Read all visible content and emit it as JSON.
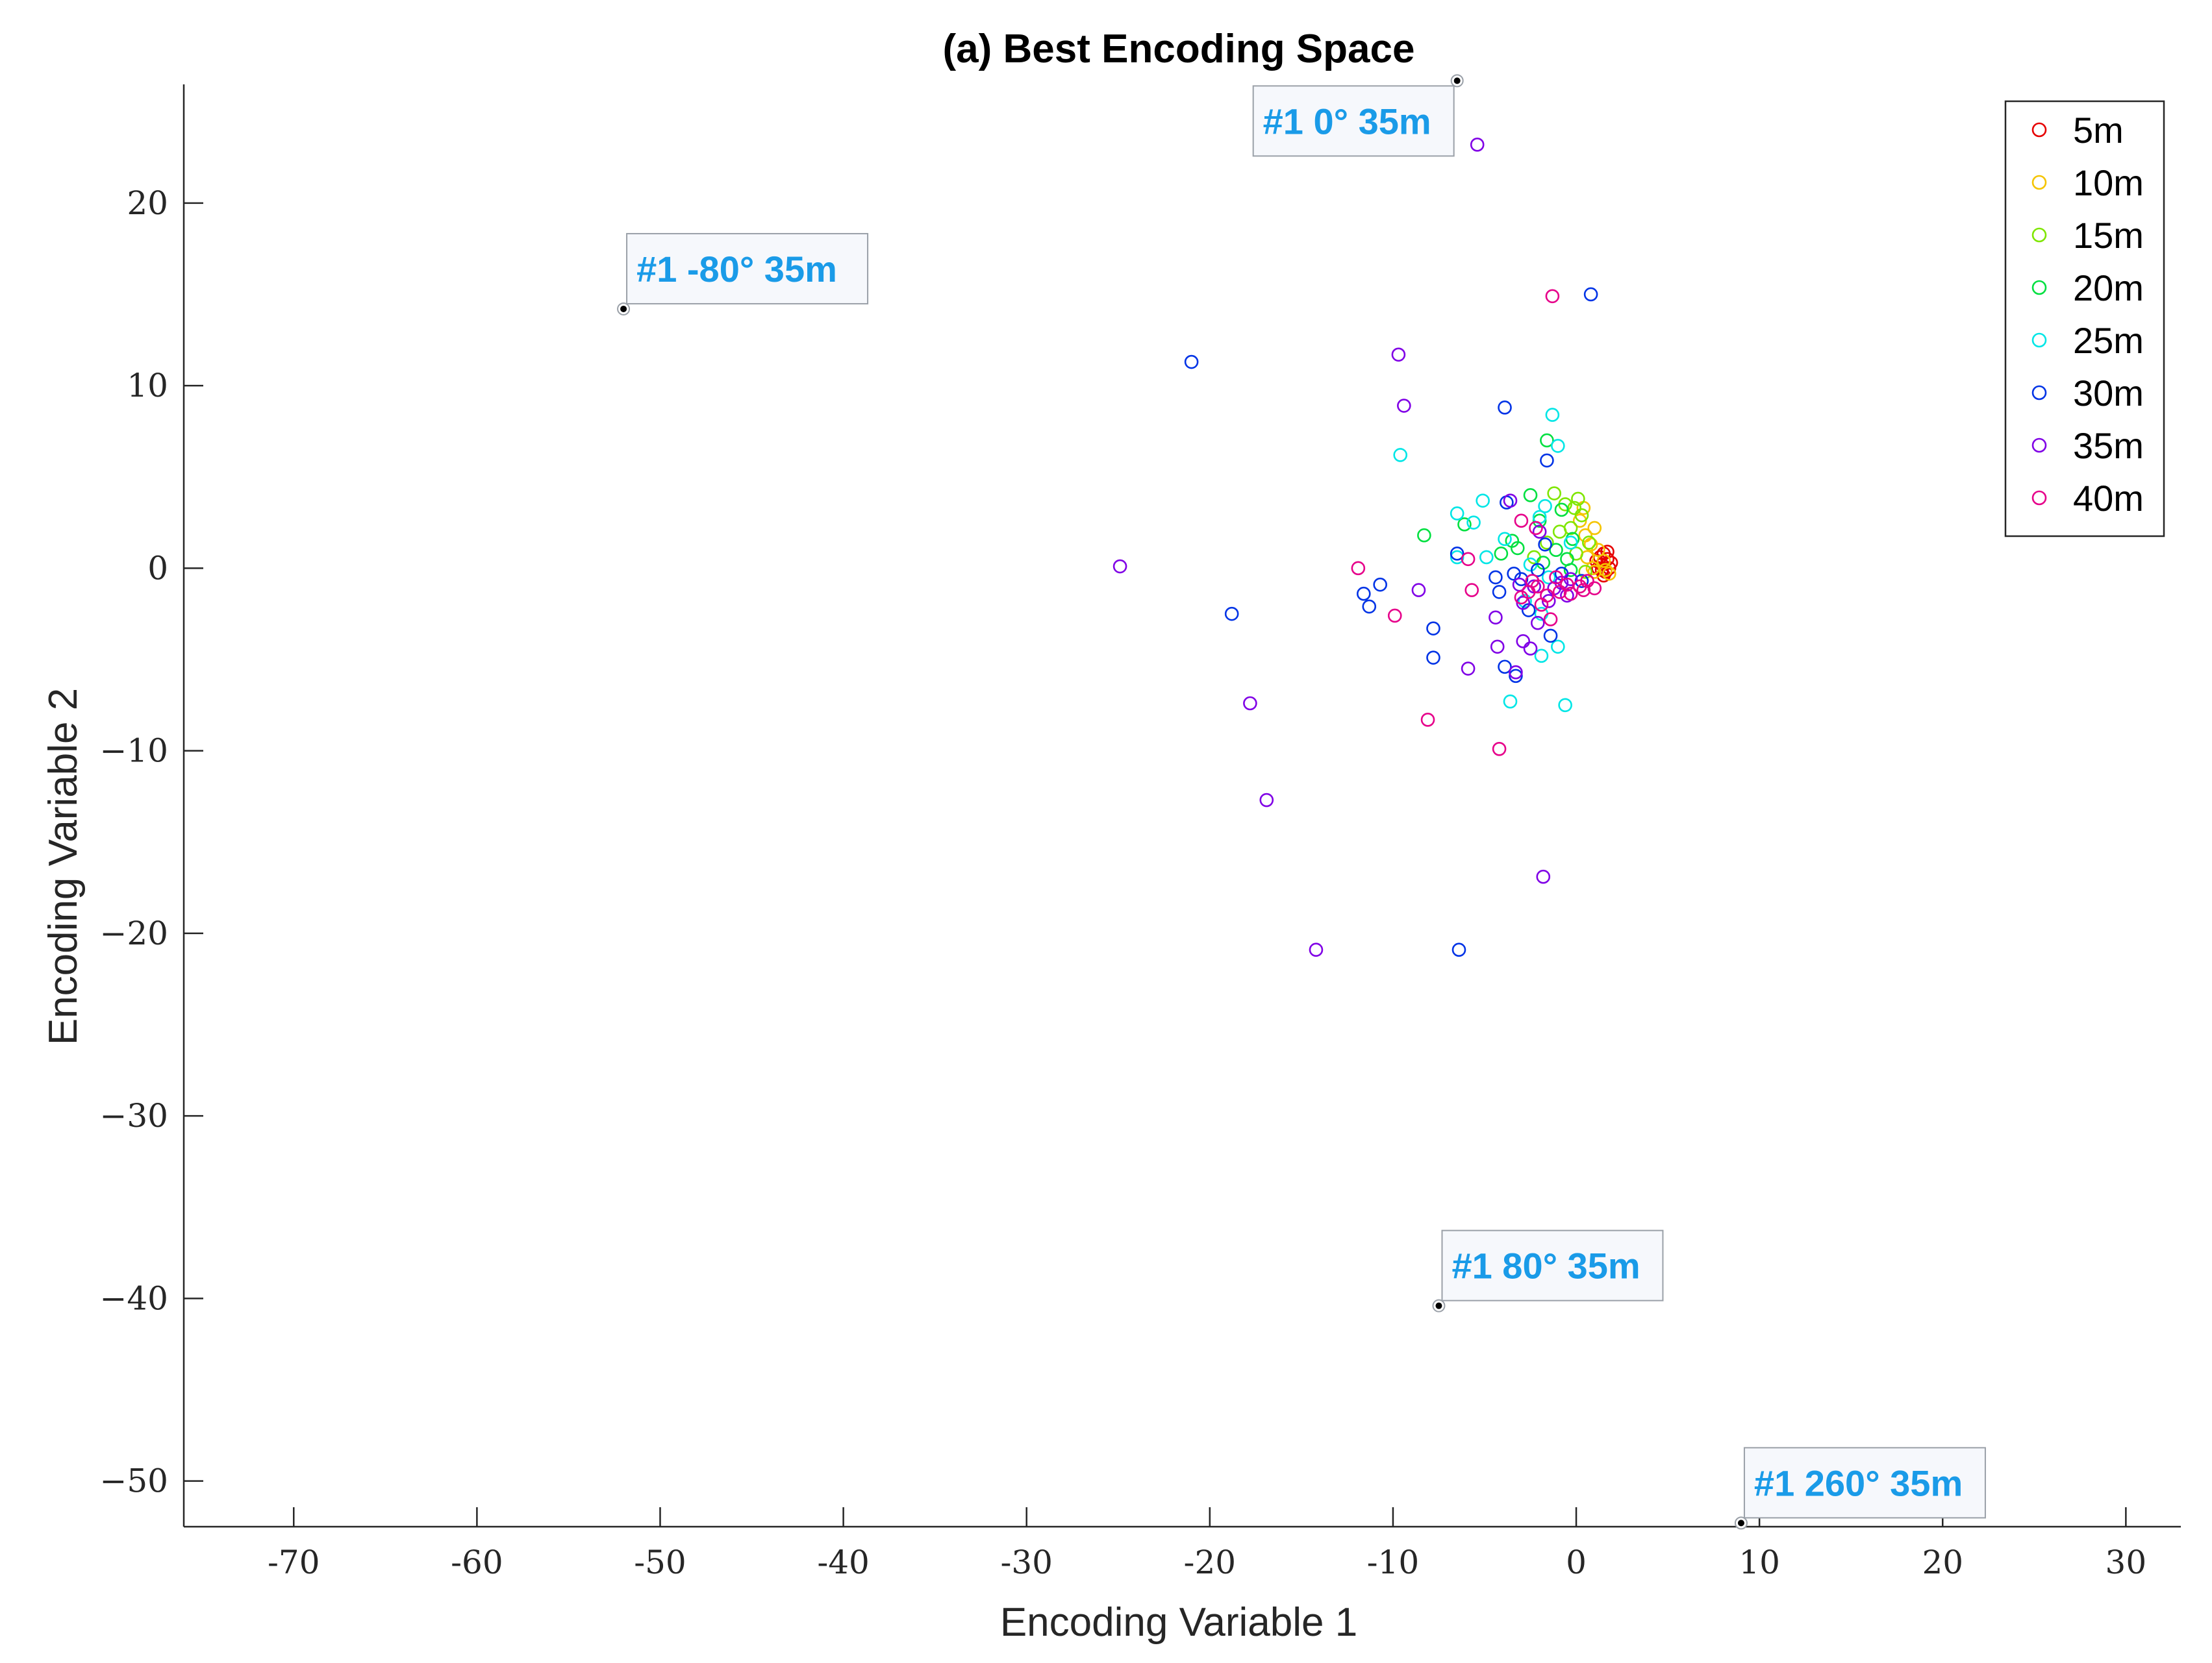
{
  "chart_data": {
    "type": "scatter",
    "title": "(a) Best Encoding Space",
    "xlabel": "Encoding Variable 1",
    "ylabel": "Encoding Variable 2",
    "xlim": [
      -76,
      33
    ],
    "ylim": [
      -52.5,
      26.5
    ],
    "xticks": [
      -70,
      -60,
      -50,
      -40,
      -30,
      -20,
      -10,
      0,
      10,
      20,
      30
    ],
    "yticks": [
      -50,
      -40,
      -30,
      -20,
      -10,
      0,
      10,
      20
    ],
    "xtick_labels": [
      "-70",
      "-60",
      "-50",
      "-40",
      "-30",
      "-20",
      "-10",
      "0",
      "10",
      "20",
      "30"
    ],
    "ytick_labels": [
      "−50",
      "−40",
      "−30",
      "−20",
      "−10",
      "0",
      "10",
      "20"
    ],
    "grid": false,
    "legend_position": "top-right",
    "marker": "open-circle",
    "series": [
      {
        "name": "5m",
        "color": "#e60000",
        "points": [
          [
            1.5,
            0.8
          ],
          [
            1.7,
            0.5
          ],
          [
            1.4,
            0.2
          ],
          [
            1.8,
            0.0
          ],
          [
            1.6,
            -0.2
          ],
          [
            1.3,
            0.6
          ],
          [
            1.9,
            0.3
          ],
          [
            1.2,
            0.0
          ],
          [
            1.5,
            -0.4
          ],
          [
            1.7,
            0.9
          ],
          [
            1.1,
            0.4
          ],
          [
            1.4,
            -0.1
          ]
        ]
      },
      {
        "name": "10m",
        "color": "#f5c400",
        "points": [
          [
            1.0,
            2.2
          ],
          [
            0.8,
            1.3
          ],
          [
            1.5,
            0.4
          ],
          [
            0.5,
            1.8
          ],
          [
            0.9,
            0.0
          ],
          [
            1.8,
            -0.3
          ],
          [
            0.2,
            2.6
          ],
          [
            1.2,
            1.0
          ],
          [
            0.6,
            0.6
          ],
          [
            1.6,
            -0.1
          ],
          [
            0.4,
            3.3
          ],
          [
            1.0,
            -0.2
          ]
        ]
      },
      {
        "name": "15m",
        "color": "#7fe600",
        "points": [
          [
            0.1,
            3.8
          ],
          [
            -0.6,
            3.5
          ],
          [
            0.3,
            2.9
          ],
          [
            -1.2,
            4.1
          ],
          [
            -0.3,
            2.2
          ],
          [
            0.7,
            1.4
          ],
          [
            -1.6,
            1.4
          ],
          [
            0.0,
            0.8
          ],
          [
            -2.3,
            0.6
          ],
          [
            0.5,
            -0.2
          ],
          [
            -0.9,
            2.0
          ],
          [
            -0.1,
            3.3
          ]
        ]
      },
      {
        "name": "20m",
        "color": "#00e040",
        "points": [
          [
            -8.3,
            1.8
          ],
          [
            -6.1,
            2.4
          ],
          [
            -2.5,
            4.0
          ],
          [
            -1.6,
            7.0
          ],
          [
            -3.2,
            1.1
          ],
          [
            -0.8,
            3.2
          ],
          [
            -2.0,
            2.6
          ],
          [
            -0.2,
            1.6
          ],
          [
            -1.1,
            1.0
          ],
          [
            -3.5,
            1.5
          ],
          [
            -0.5,
            0.5
          ],
          [
            -1.8,
            0.3
          ],
          [
            -4.1,
            0.8
          ],
          [
            -0.3,
            -0.1
          ]
        ]
      },
      {
        "name": "25m",
        "color": "#00e6e6",
        "points": [
          [
            -9.6,
            6.2
          ],
          [
            -1.3,
            8.4
          ],
          [
            -1.0,
            6.7
          ],
          [
            -5.1,
            3.7
          ],
          [
            -6.5,
            3.0
          ],
          [
            -1.7,
            3.4
          ],
          [
            -5.6,
            2.5
          ],
          [
            -2.0,
            2.8
          ],
          [
            -3.9,
            1.6
          ],
          [
            -6.5,
            0.6
          ],
          [
            -4.9,
            0.6
          ],
          [
            -2.5,
            0.2
          ],
          [
            -1.5,
            -0.5
          ],
          [
            -1.9,
            -2.5
          ],
          [
            -1.0,
            -4.3
          ],
          [
            -1.9,
            -4.8
          ],
          [
            -3.6,
            -7.3
          ],
          [
            -0.6,
            -7.5
          ],
          [
            -0.3,
            1.4
          ],
          [
            -2.8,
            -1.8
          ]
        ]
      },
      {
        "name": "30m",
        "color": "#0033e6",
        "points": [
          [
            0.8,
            15.0
          ],
          [
            -21.0,
            11.3
          ],
          [
            -3.9,
            8.8
          ],
          [
            -1.6,
            5.9
          ],
          [
            -3.8,
            3.6
          ],
          [
            -1.7,
            1.3
          ],
          [
            -6.5,
            0.8
          ],
          [
            -11.6,
            -1.4
          ],
          [
            -11.3,
            -2.1
          ],
          [
            -10.7,
            -0.9
          ],
          [
            -18.8,
            -2.5
          ],
          [
            -7.8,
            -3.3
          ],
          [
            -7.8,
            -4.9
          ],
          [
            -4.2,
            -1.3
          ],
          [
            -3.9,
            -5.4
          ],
          [
            -3.3,
            -5.9
          ],
          [
            -1.4,
            -3.7
          ],
          [
            -2.1,
            -0.1
          ],
          [
            -2.6,
            -2.3
          ],
          [
            -6.4,
            -20.9
          ],
          [
            -3.4,
            -0.3
          ],
          [
            -4.4,
            -0.5
          ],
          [
            -0.8,
            -0.3
          ],
          [
            0.3,
            -0.7
          ],
          [
            -3.0,
            -0.6
          ]
        ]
      },
      {
        "name": "35m",
        "color": "#8000e6",
        "points": [
          [
            -5.4,
            23.2
          ],
          [
            -9.7,
            11.7
          ],
          [
            -9.4,
            8.9
          ],
          [
            -24.9,
            0.1
          ],
          [
            -8.6,
            -1.2
          ],
          [
            -17.8,
            -7.4
          ],
          [
            -16.9,
            -12.7
          ],
          [
            -14.2,
            -20.9
          ],
          [
            -1.8,
            -16.9
          ],
          [
            -5.9,
            -5.5
          ],
          [
            -4.4,
            -2.7
          ],
          [
            -2.9,
            -4.0
          ],
          [
            -2.5,
            -4.4
          ],
          [
            -3.3,
            -5.7
          ],
          [
            -4.3,
            -4.3
          ],
          [
            -3.6,
            3.7
          ],
          [
            -2.0,
            2.0
          ],
          [
            -2.3,
            -1.0
          ],
          [
            -1.5,
            -1.8
          ],
          [
            -0.8,
            -0.8
          ],
          [
            -2.9,
            -1.9
          ],
          [
            -1.2,
            -1.1
          ],
          [
            -3.1,
            -0.9
          ],
          [
            -0.3,
            -0.6
          ],
          [
            -2.1,
            -3.0
          ],
          [
            -0.5,
            -1.5
          ]
        ]
      },
      {
        "name": "40m",
        "color": "#e6008a",
        "points": [
          [
            -1.3,
            14.9
          ],
          [
            -11.9,
            0.0
          ],
          [
            -9.9,
            -2.6
          ],
          [
            -8.1,
            -8.3
          ],
          [
            -4.2,
            -9.9
          ],
          [
            -5.9,
            0.5
          ],
          [
            -5.7,
            -1.2
          ],
          [
            -3.0,
            2.6
          ],
          [
            -2.2,
            2.2
          ],
          [
            -2.1,
            -1.0
          ],
          [
            -1.4,
            -2.8
          ],
          [
            -1.6,
            -1.5
          ],
          [
            -0.9,
            -1.3
          ],
          [
            -0.5,
            -0.9
          ],
          [
            0.2,
            -1.0
          ],
          [
            -2.6,
            -1.3
          ],
          [
            -1.9,
            -2.0
          ],
          [
            -0.3,
            -1.4
          ],
          [
            0.6,
            -0.7
          ],
          [
            1.0,
            -1.1
          ],
          [
            -3.0,
            -1.6
          ],
          [
            -1.1,
            -0.5
          ],
          [
            0.4,
            -1.2
          ],
          [
            -2.4,
            -0.7
          ]
        ]
      }
    ],
    "annotations": [
      {
        "label": "#1 0° 35m",
        "point": [
          -6.5,
          26.7
        ],
        "anchor": "left"
      },
      {
        "label": "#1 -80° 35m",
        "point": [
          -52.0,
          14.2
        ],
        "anchor": "right"
      },
      {
        "label": "#1 80° 35m",
        "point": [
          -7.5,
          -40.4
        ],
        "anchor": "right"
      },
      {
        "label": "#1 260° 35m",
        "point": [
          9.0,
          -52.3
        ],
        "anchor": "right"
      }
    ]
  }
}
